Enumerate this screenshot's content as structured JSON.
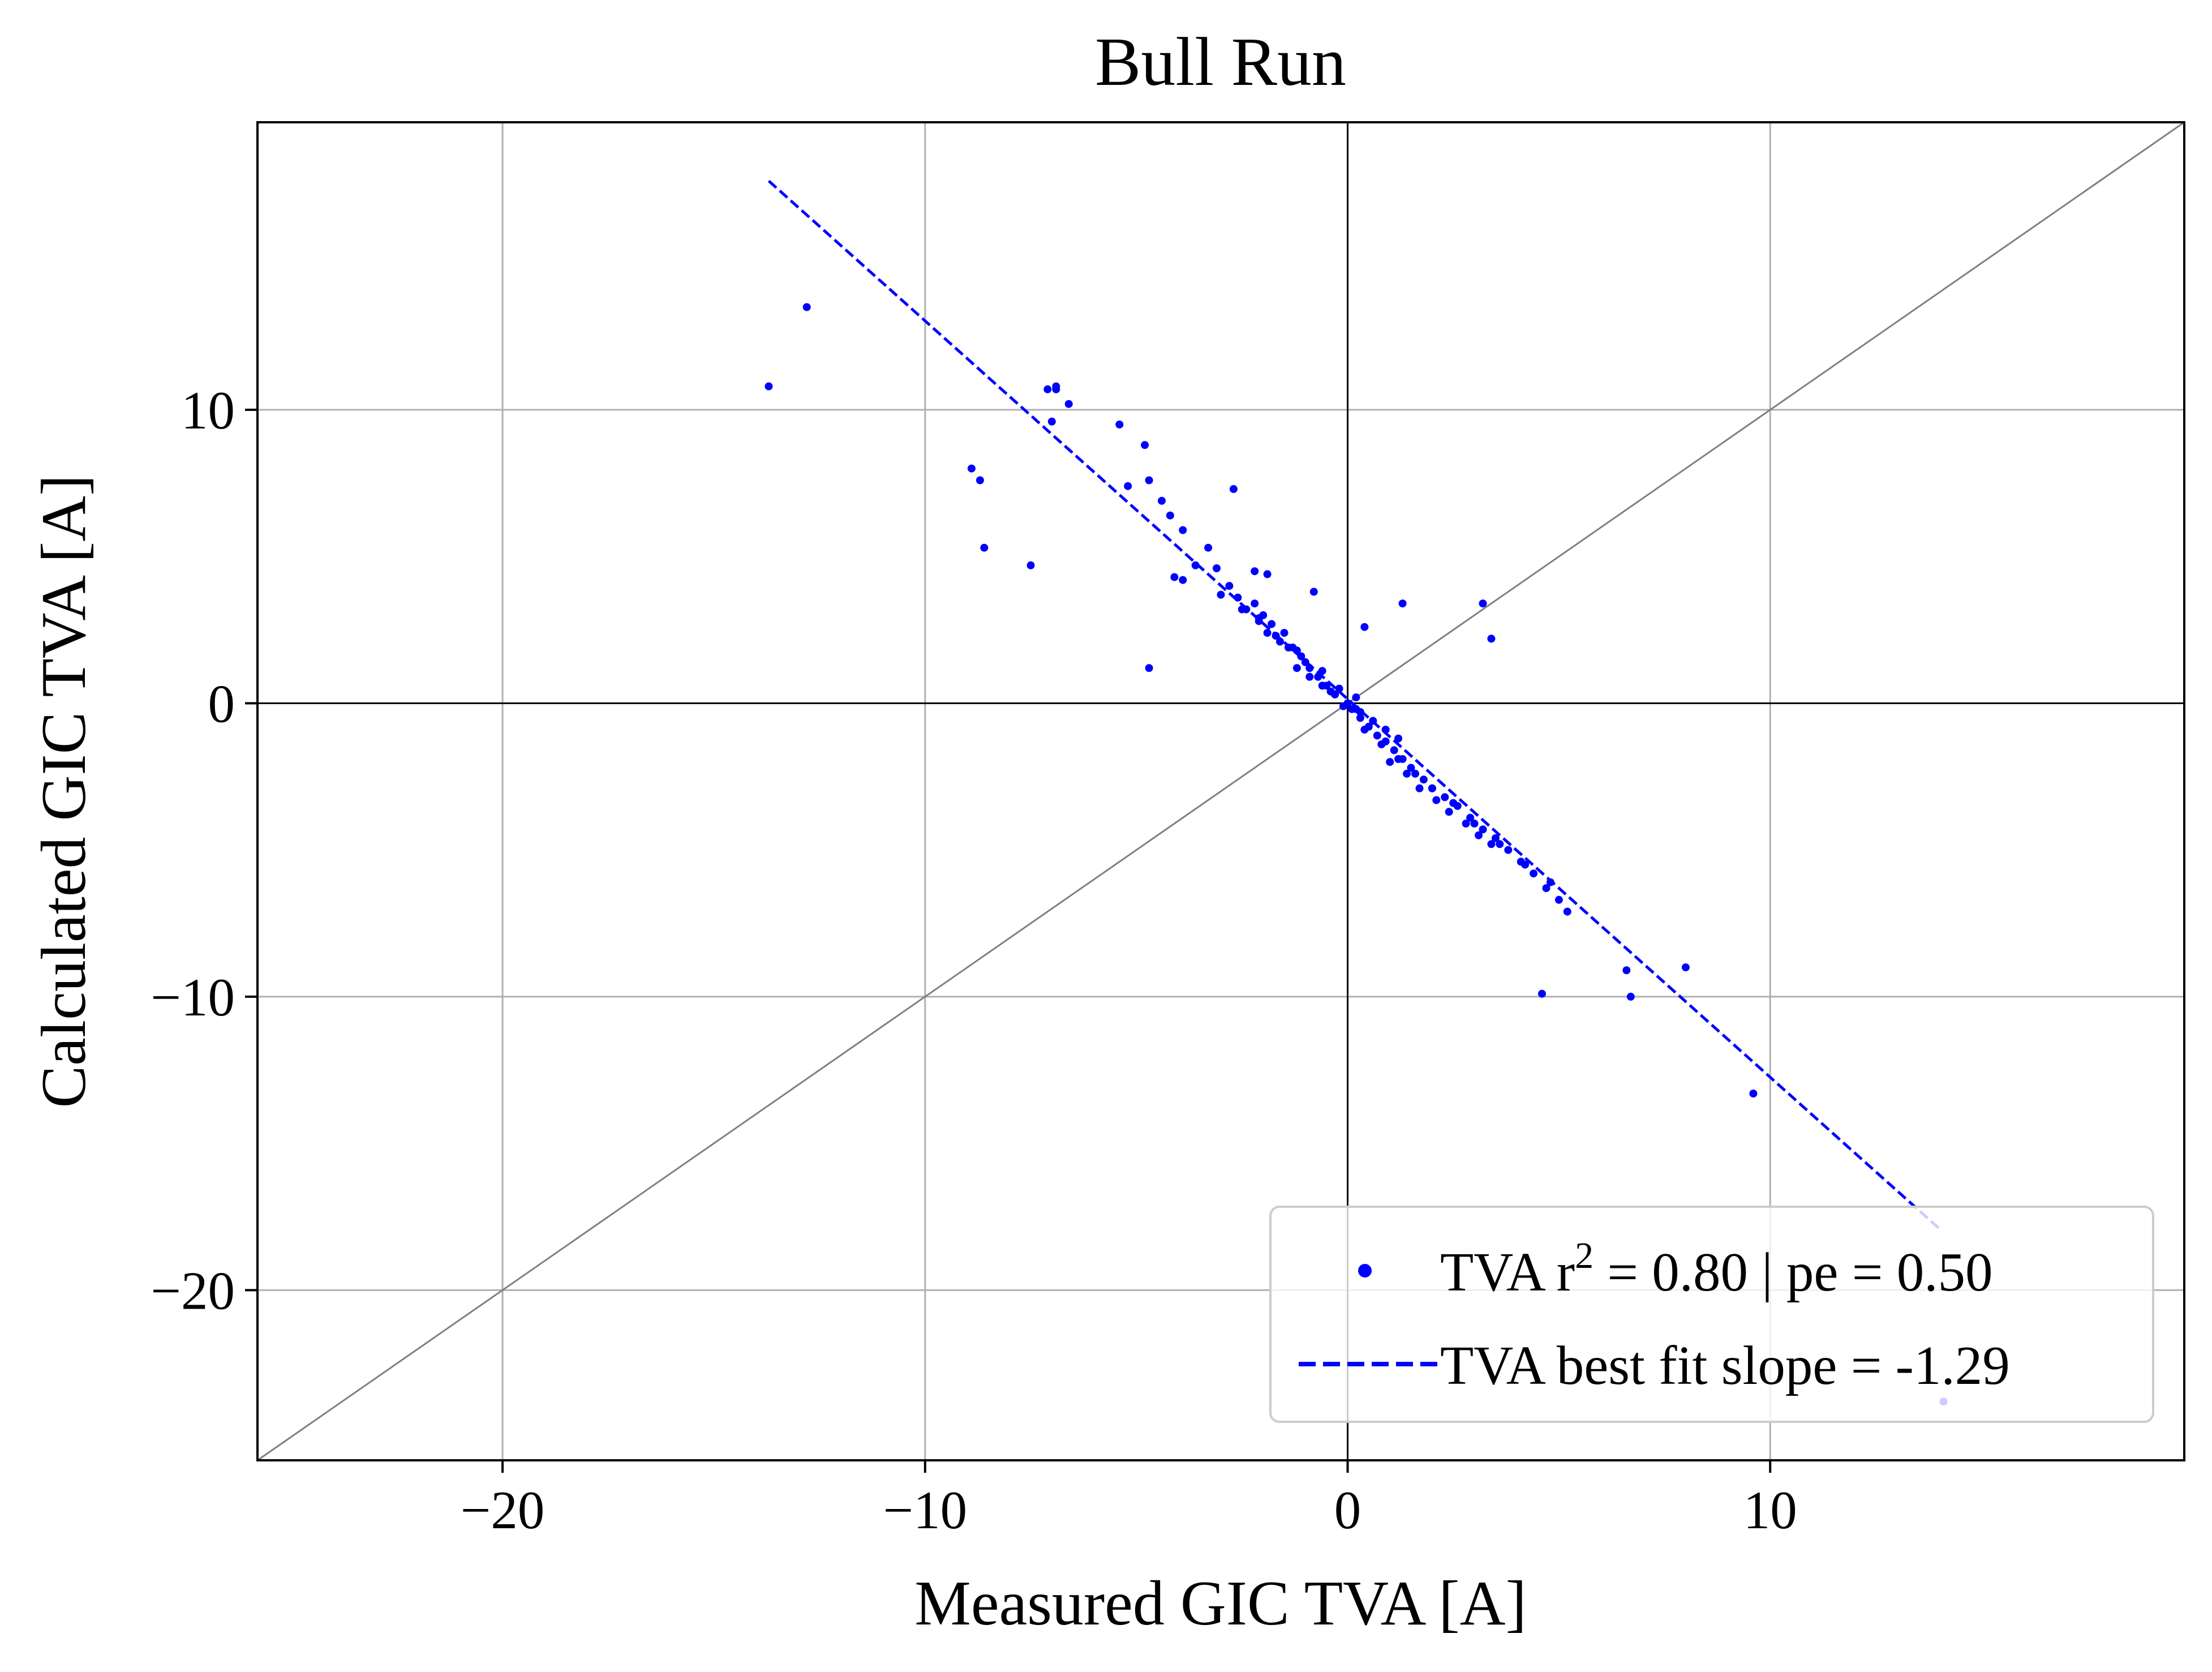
{
  "chart_data": {
    "type": "scatter",
    "title": "Bull Run",
    "xlabel": "Measured GIC TVA [A]",
    "ylabel": "Calculated GIC TVA [A]",
    "xlim": [
      -25.8,
      19.8
    ],
    "ylim": [
      -25.8,
      19.8
    ],
    "xticks": [
      -20,
      -10,
      0,
      10
    ],
    "yticks": [
      -20,
      -10,
      0,
      10
    ],
    "xtick_labels": [
      "−20",
      "−10",
      "0",
      "10"
    ],
    "ytick_labels": [
      "−20",
      "−10",
      "0",
      "10"
    ],
    "grid": true,
    "zero_lines": true,
    "identity_line": true,
    "legend_placement": "lower-right",
    "colors": {
      "series": "#0000ff",
      "grid": "#b0b0b0",
      "identity": "#808080",
      "axis": "#000000"
    },
    "series": [
      {
        "name": "TVA r2 = 0.80 | pe = 0.50",
        "kind": "scatter",
        "legend": {
          "prefix": "TVA r",
          "superscript": "2",
          "suffix": " = 0.80 | pe = 0.50"
        },
        "x": [
          -13.7,
          -12.8,
          -7.1,
          -6.9,
          -7.0,
          -6.6,
          -6.9,
          -5.4,
          -4.8,
          -5.2,
          -4.7,
          -4.4,
          -4.2,
          -3.9,
          -4.1,
          -3.6,
          -3.3,
          -3.1,
          -2.8,
          -2.6,
          -2.2,
          -2.0,
          -1.8,
          -1.5,
          -1.2,
          -3.9,
          -3.0,
          -2.5,
          -2.1,
          -1.9,
          -1.6,
          -1.4,
          -1.1,
          -0.9,
          -0.7,
          -0.5,
          -0.3,
          0.1,
          0.3,
          0.5,
          0.7,
          0.9,
          1.1,
          1.3,
          1.5,
          1.8,
          2.0,
          2.3,
          2.6,
          2.9,
          3.2,
          3.5,
          3.8,
          4.1,
          4.4,
          4.7,
          5.0,
          3.4,
          3.1,
          2.8,
          2.4,
          2.1,
          1.7,
          1.4,
          1.0,
          -0.6,
          -0.2,
          0.2,
          0.6,
          -1.0,
          -1.3,
          -1.7,
          -2.1,
          -2.4,
          0.4,
          0.8,
          1.2,
          1.6,
          2.0,
          2.5,
          3.0,
          3.6,
          4.2,
          4.8,
          5.2,
          6.6,
          6.7,
          8.0,
          9.6,
          14.1,
          4.6,
          -8.9,
          -8.7,
          -8.6,
          -7.5,
          -4.7,
          -2.7,
          -2.2,
          -1.9,
          -0.8,
          0.4,
          1.3,
          3.4,
          3.2,
          -0.4,
          0.0,
          0.2,
          -0.1,
          -0.3,
          0.3,
          -0.6,
          0.6,
          -0.9,
          0.9,
          -1.2,
          1.2
        ],
        "y": [
          10.8,
          13.5,
          10.7,
          10.8,
          9.6,
          10.2,
          10.7,
          9.5,
          8.8,
          7.4,
          7.6,
          6.9,
          6.4,
          5.9,
          4.3,
          4.7,
          5.3,
          4.6,
          4.0,
          3.6,
          3.4,
          3.0,
          2.7,
          2.4,
          1.8,
          4.2,
          3.7,
          3.2,
          2.9,
          2.4,
          2.1,
          1.9,
          1.6,
          1.2,
          0.9,
          0.6,
          0.3,
          -0.2,
          -0.5,
          -0.8,
          -1.1,
          -1.3,
          -1.6,
          -1.9,
          -2.2,
          -2.6,
          -2.9,
          -3.2,
          -3.5,
          -3.9,
          -4.3,
          -4.6,
          -5.0,
          -5.4,
          -5.8,
          -6.3,
          -6.7,
          -4.8,
          -4.5,
          -4.1,
          -3.7,
          -3.3,
          -2.9,
          -2.4,
          -2.0,
          1.1,
          0.5,
          -0.2,
          -0.6,
          1.4,
          1.9,
          2.3,
          2.8,
          3.2,
          -0.9,
          -1.4,
          -1.9,
          -2.4,
          -2.9,
          -3.4,
          -4.1,
          -4.8,
          -5.5,
          -6.1,
          -7.1,
          -9.1,
          -10.0,
          -9.0,
          -13.3,
          -23.8,
          -9.9,
          8.0,
          7.6,
          5.3,
          4.7,
          1.2,
          7.3,
          4.5,
          4.4,
          3.8,
          2.6,
          3.4,
          2.2,
          3.4,
          0.4,
          0.0,
          0.2,
          -0.1,
          0.3,
          -0.3,
          0.6,
          -0.6,
          0.9,
          -0.9,
          1.2,
          -1.2
        ]
      },
      {
        "name": "TVA best fit slope = -1.29",
        "kind": "line",
        "dash": "dashed",
        "x": [
          -13.7,
          14.0
        ],
        "y": [
          17.8,
          -17.9
        ]
      },
      {
        "name": "",
        "kind": "identity",
        "x": [
          -25.8,
          19.8
        ],
        "y": [
          -25.8,
          19.8
        ]
      }
    ]
  }
}
